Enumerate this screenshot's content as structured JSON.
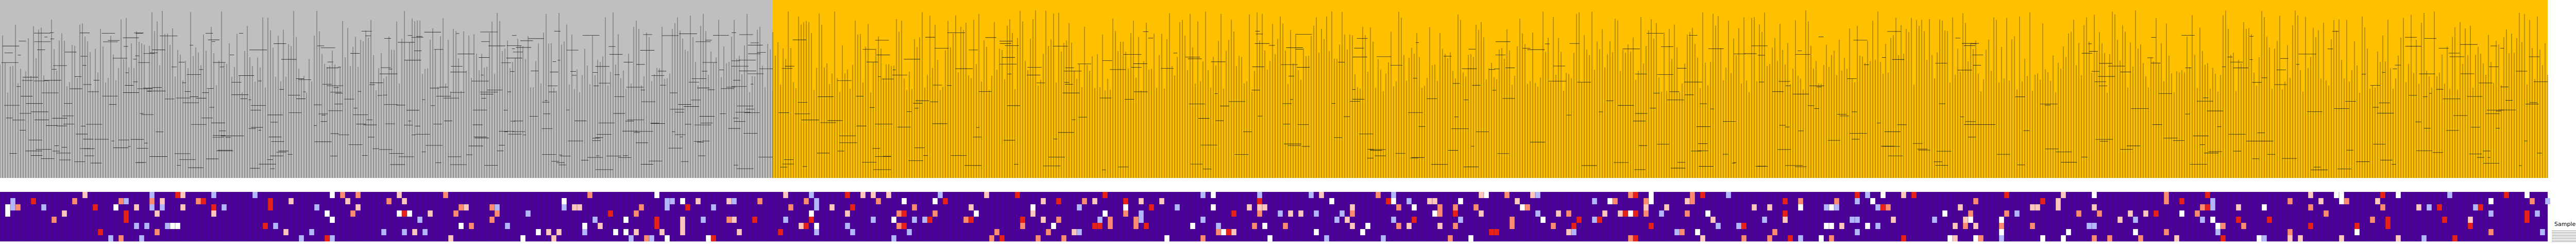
{
  "colors": {
    "background": "#ffffff",
    "gray_region": "#bfbfbf",
    "gold_region": "#ffc000",
    "stroke": "#222222",
    "heatmap_base": "#4b0099",
    "heatmap_red": "#e8221a",
    "heatmap_salmon": "#ff8a72",
    "heatmap_pink": "#ffc6c0",
    "heatmap_white": "#ffffff",
    "heatmap_lavender": "#b4b4ff"
  },
  "legend": {
    "title": "Sample Cohorts",
    "rows": [
      "",
      "",
      "",
      "",
      "",
      "",
      "",
      ""
    ]
  }
}
